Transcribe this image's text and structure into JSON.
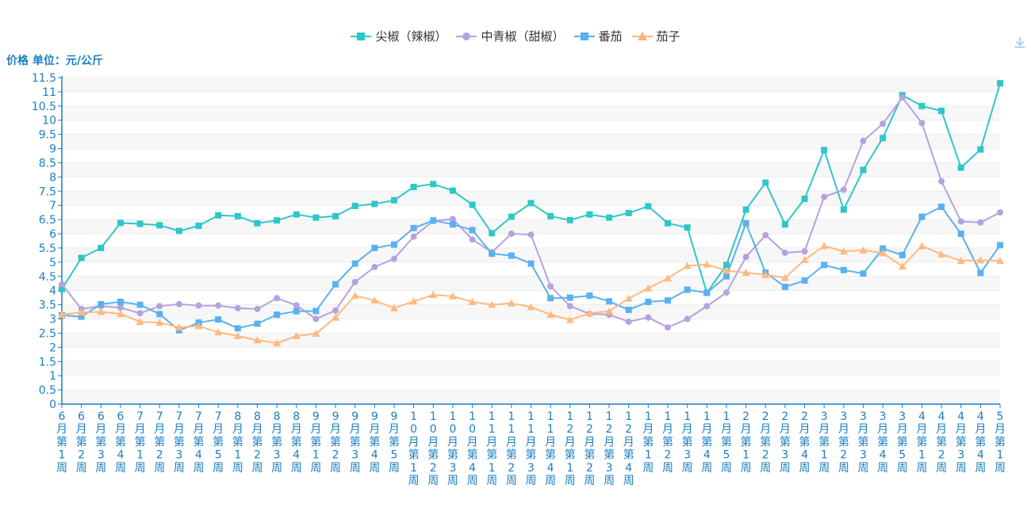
{
  "chart_data": {
    "type": "line",
    "ylabel": "价格 单位：元/公斤",
    "ylim": [
      0,
      11.5
    ],
    "ystep": 0.5,
    "grid": true,
    "legend_position": "top-center",
    "categories": [
      "6月第1周",
      "6月第2周",
      "6月第3周",
      "6月第4周",
      "7月第1周",
      "7月第2周",
      "7月第3周",
      "7月第4周",
      "7月第5周",
      "8月第1周",
      "8月第2周",
      "8月第3周",
      "8月第4周",
      "9月第1周",
      "9月第2周",
      "9月第3周",
      "9月第4周",
      "9月第5周",
      "10月第1周",
      "10月第2周",
      "10月第3周",
      "10月第4周",
      "11月第1周",
      "11月第2周",
      "11月第3周",
      "11月第4周",
      "12月第1周",
      "12月第2周",
      "12月第3周",
      "12月第4周",
      "1月第1周",
      "1月第2周",
      "1月第3周",
      "1月第4周",
      "1月第5周",
      "2月第1周",
      "2月第2周",
      "2月第3周",
      "2月第4周",
      "3月第1周",
      "3月第2周",
      "3月第3周",
      "3月第4周",
      "3月第5周",
      "4月第1周",
      "4月第2周",
      "4月第3周",
      "4月第4周",
      "5月第1周"
    ],
    "series": [
      {
        "name": "尖椒（辣椒）",
        "color": "#2ec7c9",
        "marker": "square",
        "values": [
          4.05,
          5.15,
          5.5,
          6.38,
          6.35,
          6.3,
          6.1,
          6.28,
          6.65,
          6.62,
          6.37,
          6.47,
          6.68,
          6.57,
          6.62,
          6.98,
          7.05,
          7.18,
          7.65,
          7.75,
          7.52,
          7.02,
          6.02,
          6.6,
          7.08,
          6.62,
          6.48,
          6.68,
          6.57,
          6.73,
          6.97,
          6.37,
          6.22,
          3.92,
          4.9,
          6.85,
          7.8,
          6.33,
          7.23,
          8.95,
          6.85,
          8.25,
          9.37,
          10.88,
          10.5,
          10.33,
          8.33,
          8.97,
          11.3
        ]
      },
      {
        "name": "中青椒（甜椒）",
        "color": "#b6a2de",
        "marker": "circle",
        "values": [
          4.22,
          3.35,
          3.45,
          3.4,
          3.2,
          3.45,
          3.52,
          3.47,
          3.47,
          3.38,
          3.35,
          3.73,
          3.48,
          3.0,
          3.3,
          4.3,
          4.83,
          5.12,
          5.9,
          6.45,
          6.52,
          5.8,
          5.35,
          6.0,
          5.97,
          4.15,
          3.45,
          3.18,
          3.15,
          2.9,
          3.05,
          2.7,
          3.0,
          3.45,
          3.93,
          5.18,
          5.95,
          5.33,
          5.38,
          7.3,
          7.55,
          9.27,
          9.87,
          10.8,
          9.9,
          7.85,
          6.43,
          6.4,
          6.75
        ]
      },
      {
        "name": "番茄",
        "color": "#5ab1ef",
        "marker": "square",
        "values": [
          3.13,
          3.08,
          3.52,
          3.6,
          3.5,
          3.17,
          2.6,
          2.87,
          2.98,
          2.67,
          2.83,
          3.15,
          3.27,
          3.28,
          4.22,
          4.95,
          5.5,
          5.62,
          6.2,
          6.47,
          6.33,
          6.13,
          5.3,
          5.23,
          4.95,
          3.73,
          3.75,
          3.82,
          3.62,
          3.32,
          3.6,
          3.65,
          4.03,
          3.92,
          4.5,
          6.37,
          4.63,
          4.13,
          4.35,
          4.9,
          4.72,
          4.6,
          5.48,
          5.25,
          6.6,
          6.95,
          6.0,
          4.62,
          5.6
        ]
      },
      {
        "name": "茄子",
        "color": "#ffb980",
        "marker": "triangle",
        "values": [
          3.15,
          3.23,
          3.25,
          3.18,
          2.9,
          2.87,
          2.7,
          2.75,
          2.53,
          2.4,
          2.25,
          2.15,
          2.4,
          2.48,
          3.05,
          3.82,
          3.65,
          3.38,
          3.62,
          3.85,
          3.8,
          3.6,
          3.5,
          3.55,
          3.42,
          3.15,
          2.97,
          3.2,
          3.27,
          3.72,
          4.08,
          4.43,
          4.87,
          4.92,
          4.7,
          4.63,
          4.55,
          4.45,
          5.08,
          5.57,
          5.38,
          5.42,
          5.32,
          4.85,
          5.57,
          5.28,
          5.05,
          5.07,
          5.05
        ]
      }
    ]
  },
  "icons": {
    "download": "download-icon"
  }
}
